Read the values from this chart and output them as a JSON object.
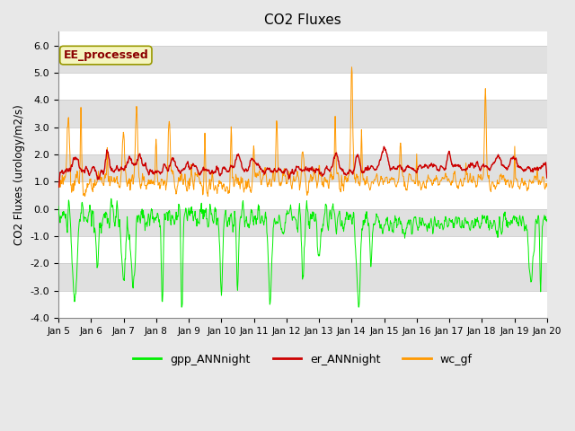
{
  "title": "CO2 Fluxes",
  "ylabel": "CO2 Fluxes (urology/m2/s)",
  "ylim": [
    -4.0,
    6.5
  ],
  "yticks": [
    -4.0,
    -3.0,
    -2.0,
    -1.0,
    0.0,
    1.0,
    2.0,
    3.0,
    4.0,
    5.0,
    6.0
  ],
  "x_tick_labels": [
    "Jan 5",
    "Jan 6",
    "Jan 7",
    "Jan 8",
    "Jan 9",
    "Jan 10",
    "Jan 11",
    "Jan 12",
    "Jan 13",
    "Jan 14",
    "Jan 15",
    "Jan 16",
    "Jan 17",
    "Jan 18",
    "Jan 19",
    "Jan 20"
  ],
  "watermark_text": "EE_processed",
  "legend_labels": [
    "gpp_ANNnight",
    "er_ANNnight",
    "wc_gf"
  ],
  "legend_colors": [
    "#00ee00",
    "#cc0000",
    "#ff9900"
  ],
  "line_colors": {
    "gpp": "#00ee00",
    "er": "#cc0000",
    "wc": "#ff9900"
  },
  "fig_bg": "#e8e8e8",
  "plot_bg": "#ffffff",
  "band_color": "#e0e0e0",
  "n_points": 1152,
  "seed": 42
}
